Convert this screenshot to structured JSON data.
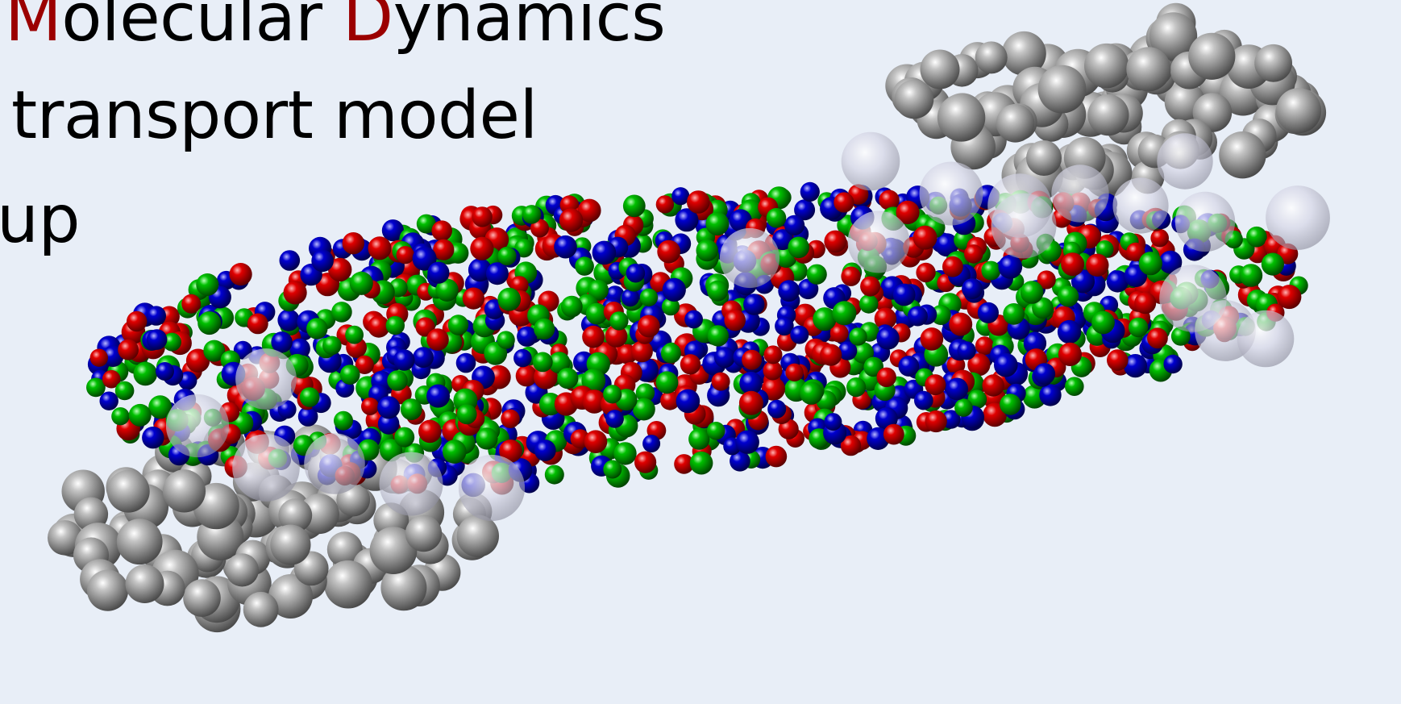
{
  "title_parts": {
    "m_initial": "M",
    "m_rest": "olecular ",
    "d_initial": "D",
    "d_rest": "ynamics"
  },
  "line2": "transport model",
  "line3": "up",
  "colors": {
    "background": "#e8eef7",
    "accent": "#9b0000",
    "particle_red": "#d40000",
    "particle_green": "#00b400",
    "particle_blue": "#0000c8",
    "spectator_gray": "#9a9a9a"
  },
  "illustration": {
    "subject": "heavy-ion-collision-particles",
    "participant_colors": [
      "red",
      "green",
      "blue"
    ],
    "spectator_color": "gray"
  }
}
